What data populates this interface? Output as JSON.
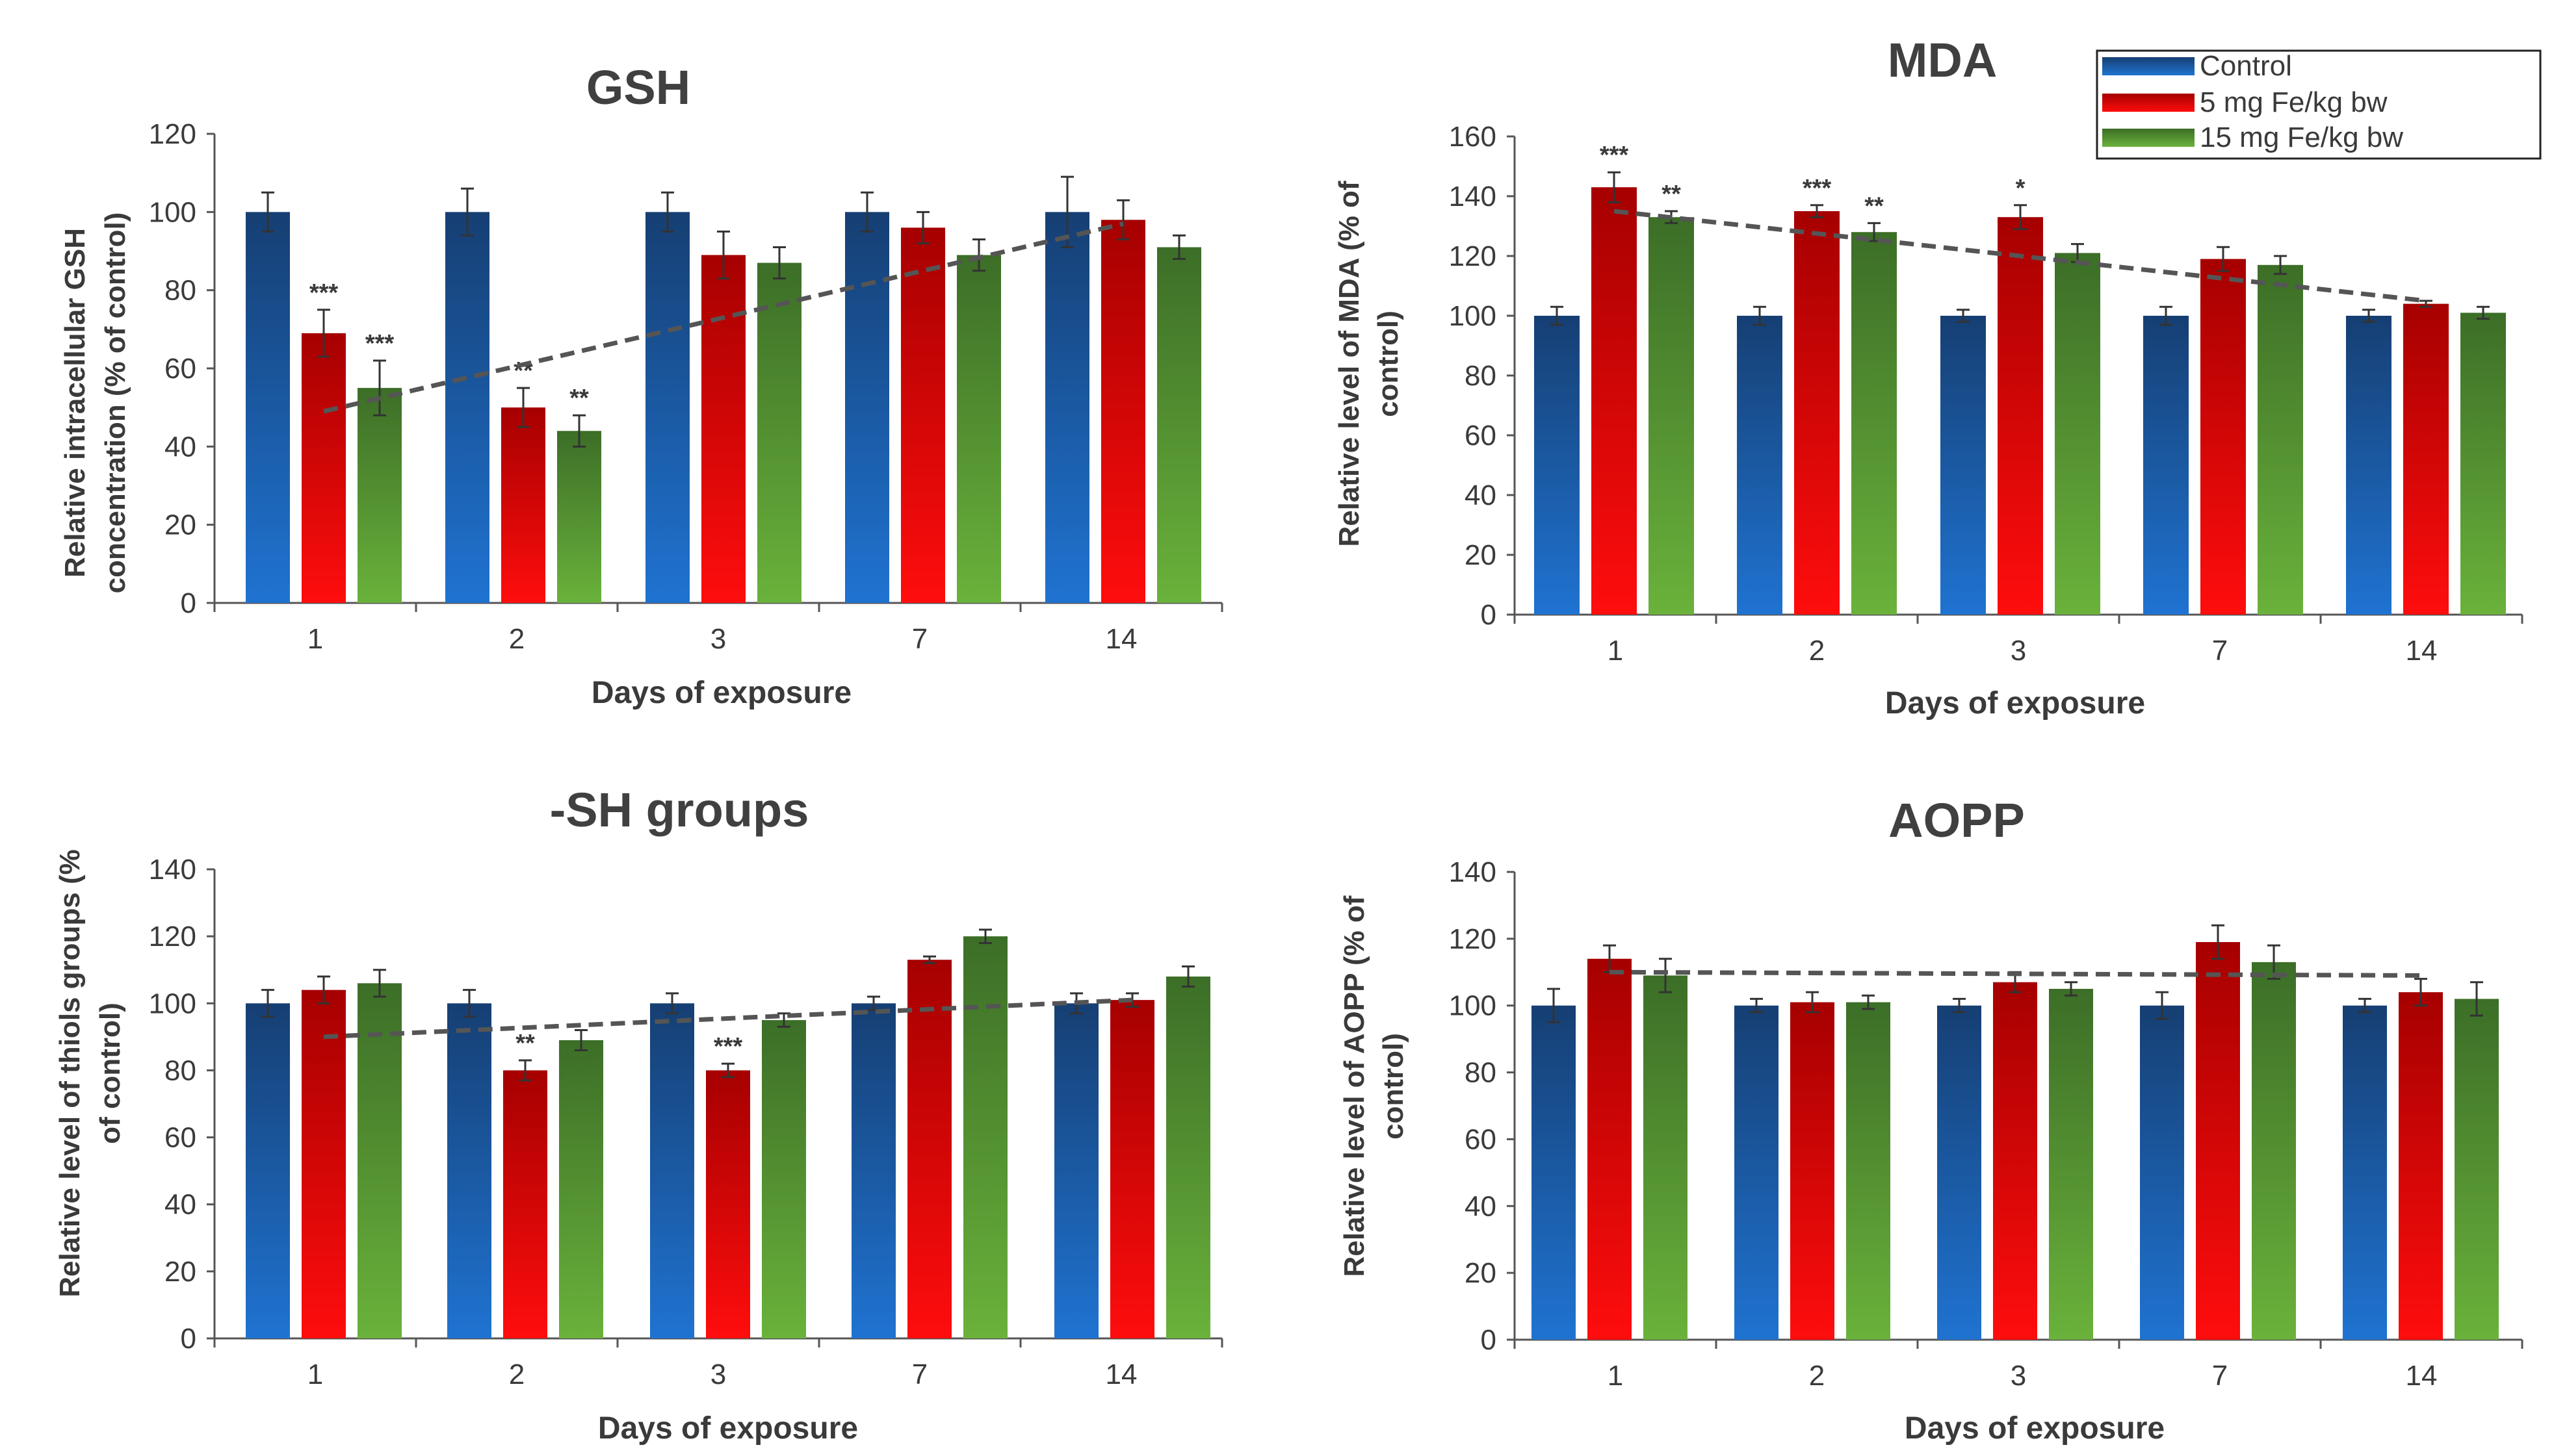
{
  "legend": {
    "items": [
      {
        "label": "Control",
        "color": "#1f5fa8",
        "grad": "gblue"
      },
      {
        "label": "5 mg Fe/kg bw",
        "color": "#e00000",
        "grad": "gred"
      },
      {
        "label": "15 mg Fe/kg bw",
        "color": "#4f8a2f",
        "grad": "ggreen"
      }
    ]
  },
  "chart_data": [
    {
      "type": "bar",
      "title": "GSH",
      "xlabel": "Days of exposure",
      "ylabel_lines": [
        "Relative intracellular GSH",
        "concentration (% of control)"
      ],
      "categories": [
        "1",
        "2",
        "3",
        "7",
        "14"
      ],
      "ylim": [
        0,
        120
      ],
      "yticks": [
        0,
        20,
        40,
        60,
        80,
        100,
        120
      ],
      "series": [
        {
          "name": "Control",
          "values": [
            100,
            100,
            100,
            100,
            100
          ],
          "errors": [
            5,
            6,
            5,
            5,
            9
          ],
          "significance": [
            "",
            "",
            "",
            "",
            ""
          ]
        },
        {
          "name": "5 mg Fe/kg bw",
          "values": [
            69,
            50,
            89,
            96,
            98
          ],
          "errors": [
            6,
            5,
            6,
            4,
            5
          ],
          "significance": [
            "***",
            "**",
            "",
            "",
            ""
          ]
        },
        {
          "name": "15 mg Fe/kg bw",
          "values": [
            55,
            44,
            87,
            89,
            91
          ],
          "errors": [
            7,
            4,
            4,
            4,
            3
          ],
          "significance": [
            "***",
            "**",
            "",
            "",
            ""
          ]
        }
      ],
      "trendline": {
        "start_value": 49,
        "end_value": 97
      }
    },
    {
      "type": "bar",
      "title": "MDA",
      "xlabel": "Days of exposure",
      "ylabel_lines": [
        "Relative level of MDA (% of",
        "control)"
      ],
      "categories": [
        "1",
        "2",
        "3",
        "7",
        "14"
      ],
      "ylim": [
        0,
        160
      ],
      "yticks": [
        0,
        20,
        40,
        60,
        80,
        100,
        120,
        140,
        160
      ],
      "series": [
        {
          "name": "Control",
          "values": [
            100,
            100,
            100,
            100,
            100
          ],
          "errors": [
            3,
            3,
            2,
            3,
            2
          ],
          "significance": [
            "",
            "",
            "",
            "",
            ""
          ]
        },
        {
          "name": "5 mg Fe/kg bw",
          "values": [
            143,
            135,
            133,
            119,
            104
          ],
          "errors": [
            5,
            2,
            4,
            4,
            1
          ],
          "significance": [
            "***",
            "***",
            "*",
            "",
            ""
          ]
        },
        {
          "name": "15 mg Fe/kg bw",
          "values": [
            133,
            128,
            121,
            117,
            101
          ],
          "errors": [
            2,
            3,
            3,
            3,
            2
          ],
          "significance": [
            "**",
            "**",
            "",
            "",
            ""
          ]
        }
      ],
      "trendline": {
        "start_value": 135,
        "end_value": 105
      }
    },
    {
      "type": "bar",
      "title": "-SH groups",
      "xlabel": "Days of exposure",
      "ylabel_lines": [
        "Relative level of thiols groups (%",
        "of control)"
      ],
      "categories": [
        "1",
        "2",
        "3",
        "7",
        "14"
      ],
      "ylim": [
        0,
        140
      ],
      "yticks": [
        0,
        20,
        40,
        60,
        80,
        100,
        120,
        140
      ],
      "series": [
        {
          "name": "Control",
          "values": [
            100,
            100,
            100,
            100,
            100
          ],
          "errors": [
            4,
            4,
            3,
            2,
            3
          ],
          "significance": [
            "",
            "",
            "",
            "",
            ""
          ]
        },
        {
          "name": "5 mg Fe/kg bw",
          "values": [
            104,
            80,
            80,
            113,
            101
          ],
          "errors": [
            4,
            3,
            2,
            1,
            2
          ],
          "significance": [
            "",
            "**",
            "***",
            "",
            ""
          ]
        },
        {
          "name": "15 mg Fe/kg bw",
          "values": [
            106,
            89,
            95,
            120,
            108
          ],
          "errors": [
            4,
            3,
            2,
            2,
            3
          ],
          "significance": [
            "",
            "",
            "",
            "",
            ""
          ]
        }
      ],
      "trendline": {
        "start_value": 90,
        "end_value": 101
      }
    },
    {
      "type": "bar",
      "title": "AOPP",
      "xlabel": "Days of exposure",
      "ylabel_lines": [
        "Relative level of AOPP (% of",
        "control)"
      ],
      "categories": [
        "1",
        "2",
        "3",
        "7",
        "14"
      ],
      "ylim": [
        0,
        140
      ],
      "yticks": [
        0,
        20,
        40,
        60,
        80,
        100,
        120,
        140
      ],
      "series": [
        {
          "name": "Control",
          "values": [
            100,
            100,
            100,
            100,
            100
          ],
          "errors": [
            5,
            2,
            2,
            4,
            2
          ],
          "significance": [
            "",
            "",
            "",
            "",
            ""
          ]
        },
        {
          "name": "5 mg Fe/kg bw",
          "values": [
            114,
            101,
            107,
            119,
            104
          ],
          "errors": [
            4,
            3,
            3,
            5,
            4
          ],
          "significance": [
            "",
            "",
            "",
            "",
            ""
          ]
        },
        {
          "name": "15 mg Fe/kg bw",
          "values": [
            109,
            101,
            105,
            113,
            102
          ],
          "errors": [
            5,
            2,
            2,
            5,
            5
          ],
          "significance": [
            "",
            "",
            "",
            "",
            ""
          ]
        }
      ],
      "trendline": {
        "start_value": 110,
        "end_value": 109
      }
    }
  ]
}
